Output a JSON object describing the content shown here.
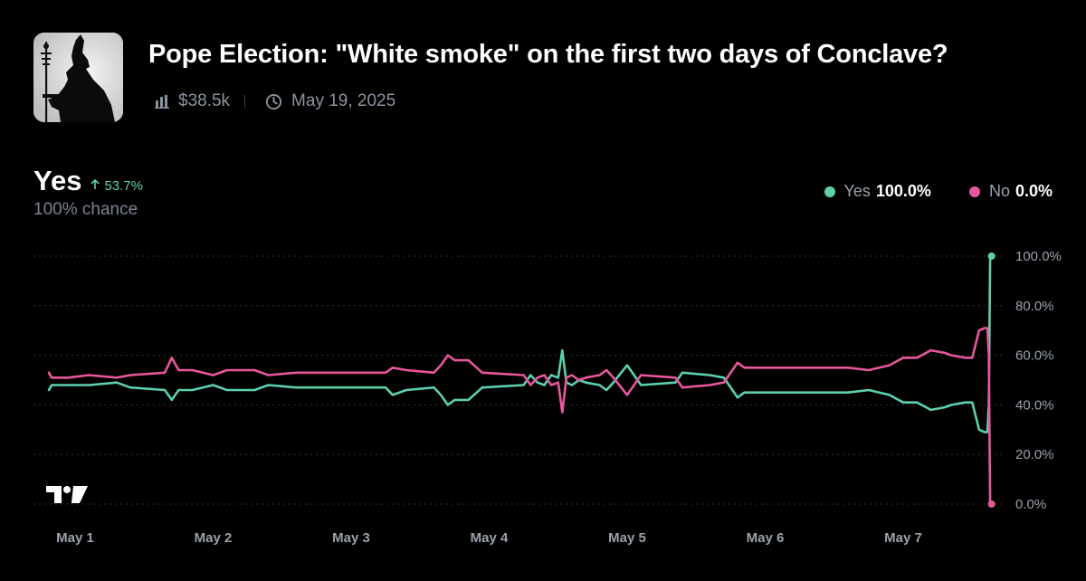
{
  "header": {
    "title": "Pope Election: \"White smoke\" on the first two days of Conclave?",
    "volume": "$38.5k",
    "date": "May 19, 2025"
  },
  "outcome": {
    "name": "Yes",
    "change": "53.7%",
    "chance": "100% chance"
  },
  "legend": [
    {
      "name": "Yes",
      "value": "100.0%",
      "color": "#5fcfb2"
    },
    {
      "name": "No",
      "value": "0.0%",
      "color": "#e8579e"
    }
  ],
  "icons": [
    "volume-bars-icon",
    "clock-icon",
    "tradingview-logo-icon"
  ],
  "chart_data": {
    "type": "line",
    "ylim": [
      0,
      100
    ],
    "xlim": [
      0.8,
      7.65
    ],
    "y_ticks": [
      {
        "value": 0,
        "label": "0.0%"
      },
      {
        "value": 20,
        "label": "20.0%"
      },
      {
        "value": 40,
        "label": "40.0%"
      },
      {
        "value": 60,
        "label": "60.0%"
      },
      {
        "value": 80,
        "label": "80.0%"
      },
      {
        "value": 100,
        "label": "100.0%"
      }
    ],
    "x_ticks": [
      {
        "value": 1,
        "label": "May 1"
      },
      {
        "value": 2,
        "label": "May 2"
      },
      {
        "value": 3,
        "label": "May 3"
      },
      {
        "value": 4,
        "label": "May 4"
      },
      {
        "value": 5,
        "label": "May 5"
      },
      {
        "value": 6,
        "label": "May 6"
      },
      {
        "value": 7,
        "label": "May 7"
      }
    ],
    "grid": true,
    "legend_position": "top-right",
    "series": [
      {
        "name": "Yes",
        "color": "#5fcfb2",
        "points": [
          [
            0.81,
            46
          ],
          [
            0.83,
            48
          ],
          [
            0.95,
            48
          ],
          [
            1.1,
            48
          ],
          [
            1.3,
            49
          ],
          [
            1.4,
            47
          ],
          [
            1.65,
            46
          ],
          [
            1.7,
            42
          ],
          [
            1.75,
            46
          ],
          [
            1.85,
            46
          ],
          [
            2.0,
            48
          ],
          [
            2.1,
            46
          ],
          [
            2.3,
            46
          ],
          [
            2.4,
            48
          ],
          [
            2.6,
            47
          ],
          [
            2.9,
            47
          ],
          [
            3.2,
            47
          ],
          [
            3.25,
            47
          ],
          [
            3.3,
            44
          ],
          [
            3.4,
            46
          ],
          [
            3.6,
            47
          ],
          [
            3.65,
            44
          ],
          [
            3.7,
            40
          ],
          [
            3.75,
            42
          ],
          [
            3.85,
            42
          ],
          [
            3.95,
            47
          ],
          [
            4.25,
            48
          ],
          [
            4.3,
            52
          ],
          [
            4.35,
            49
          ],
          [
            4.4,
            48
          ],
          [
            4.45,
            52
          ],
          [
            4.5,
            51
          ],
          [
            4.53,
            62
          ],
          [
            4.56,
            49
          ],
          [
            4.6,
            48
          ],
          [
            4.65,
            50
          ],
          [
            4.7,
            49
          ],
          [
            4.8,
            48
          ],
          [
            4.85,
            46
          ],
          [
            4.9,
            49
          ],
          [
            5.0,
            56
          ],
          [
            5.05,
            52
          ],
          [
            5.1,
            48
          ],
          [
            5.35,
            49
          ],
          [
            5.4,
            53
          ],
          [
            5.6,
            52
          ],
          [
            5.7,
            51
          ],
          [
            5.8,
            43
          ],
          [
            5.85,
            45
          ],
          [
            6.0,
            45
          ],
          [
            6.3,
            45
          ],
          [
            6.6,
            45
          ],
          [
            6.75,
            46
          ],
          [
            6.9,
            44
          ],
          [
            7.0,
            41
          ],
          [
            7.1,
            41
          ],
          [
            7.2,
            38
          ],
          [
            7.3,
            39
          ],
          [
            7.35,
            40
          ],
          [
            7.45,
            41
          ],
          [
            7.5,
            41
          ],
          [
            7.55,
            30
          ],
          [
            7.59,
            29
          ],
          [
            7.61,
            29
          ],
          [
            7.62,
            40
          ],
          [
            7.63,
            100
          ],
          [
            7.64,
            100
          ]
        ]
      },
      {
        "name": "No",
        "color": "#e8579e",
        "points": [
          [
            0.81,
            53
          ],
          [
            0.83,
            51
          ],
          [
            0.95,
            51
          ],
          [
            1.1,
            52
          ],
          [
            1.3,
            51
          ],
          [
            1.4,
            52
          ],
          [
            1.65,
            53
          ],
          [
            1.7,
            59
          ],
          [
            1.75,
            54
          ],
          [
            1.85,
            54
          ],
          [
            2.0,
            52
          ],
          [
            2.1,
            54
          ],
          [
            2.3,
            54
          ],
          [
            2.4,
            52
          ],
          [
            2.6,
            53
          ],
          [
            2.9,
            53
          ],
          [
            3.2,
            53
          ],
          [
            3.25,
            53
          ],
          [
            3.3,
            55
          ],
          [
            3.4,
            54
          ],
          [
            3.6,
            53
          ],
          [
            3.65,
            56
          ],
          [
            3.7,
            60
          ],
          [
            3.75,
            58
          ],
          [
            3.85,
            58
          ],
          [
            3.95,
            53
          ],
          [
            4.25,
            52
          ],
          [
            4.3,
            48
          ],
          [
            4.35,
            51
          ],
          [
            4.4,
            52
          ],
          [
            4.45,
            48
          ],
          [
            4.5,
            49
          ],
          [
            4.53,
            37
          ],
          [
            4.56,
            51
          ],
          [
            4.6,
            52
          ],
          [
            4.65,
            50
          ],
          [
            4.7,
            51
          ],
          [
            4.8,
            52
          ],
          [
            4.85,
            54
          ],
          [
            4.9,
            51
          ],
          [
            5.0,
            44
          ],
          [
            5.05,
            48
          ],
          [
            5.1,
            52
          ],
          [
            5.35,
            51
          ],
          [
            5.4,
            47
          ],
          [
            5.6,
            48
          ],
          [
            5.7,
            49
          ],
          [
            5.8,
            57
          ],
          [
            5.85,
            55
          ],
          [
            6.0,
            55
          ],
          [
            6.3,
            55
          ],
          [
            6.6,
            55
          ],
          [
            6.75,
            54
          ],
          [
            6.9,
            56
          ],
          [
            7.0,
            59
          ],
          [
            7.1,
            59
          ],
          [
            7.2,
            62
          ],
          [
            7.3,
            61
          ],
          [
            7.35,
            60
          ],
          [
            7.45,
            59
          ],
          [
            7.5,
            59
          ],
          [
            7.55,
            70
          ],
          [
            7.59,
            71
          ],
          [
            7.61,
            71
          ],
          [
            7.62,
            60
          ],
          [
            7.63,
            0
          ],
          [
            7.64,
            0
          ]
        ]
      }
    ]
  }
}
